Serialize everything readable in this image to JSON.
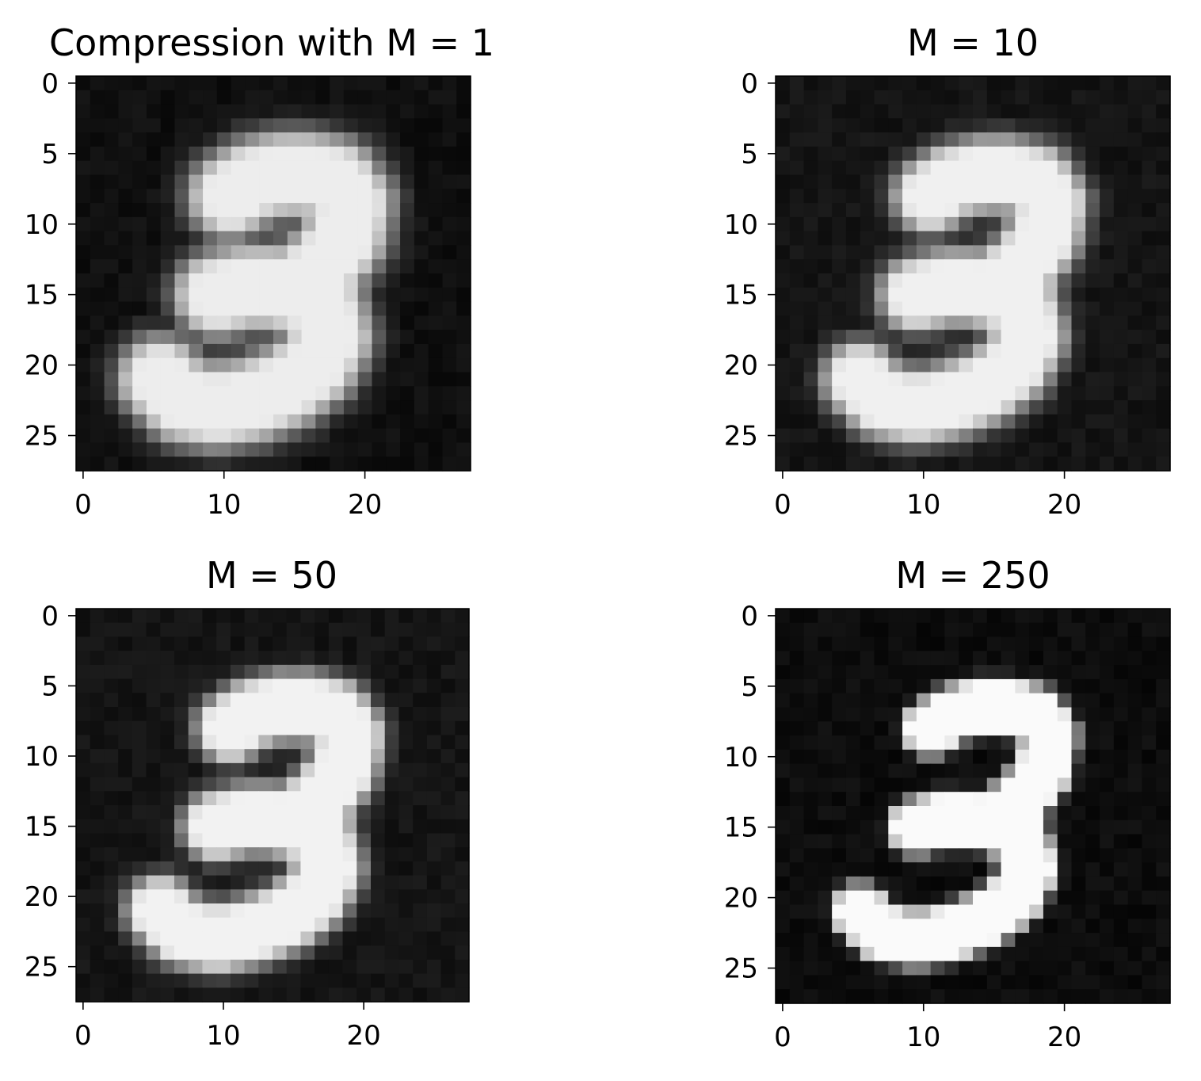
{
  "chart_data": [
    {
      "type": "heatmap",
      "title": "Compression with M = 1",
      "colormap": "gray",
      "grid": false,
      "image_size": [
        28,
        28
      ],
      "xlim": [
        -0.5,
        27.5
      ],
      "ylim": [
        27.5,
        -0.5
      ],
      "xticks": [
        "0",
        "10",
        "20"
      ],
      "yticks": [
        "0",
        "5",
        "10",
        "15",
        "20",
        "25"
      ],
      "background_level": 0.06,
      "peak_level": 0.93,
      "blur": 1.25,
      "stroke_width": 1.6
    },
    {
      "type": "heatmap",
      "title": "M = 10",
      "colormap": "gray",
      "grid": false,
      "image_size": [
        28,
        28
      ],
      "xlim": [
        -0.5,
        27.5
      ],
      "ylim": [
        27.5,
        -0.5
      ],
      "xticks": [
        "0",
        "10",
        "20"
      ],
      "yticks": [
        "0",
        "5",
        "10",
        "15",
        "20",
        "25"
      ],
      "background_level": 0.08,
      "peak_level": 0.94,
      "blur": 1.0,
      "stroke_width": 1.5
    },
    {
      "type": "heatmap",
      "title": "M = 50",
      "colormap": "gray",
      "grid": false,
      "image_size": [
        28,
        28
      ],
      "xlim": [
        -0.5,
        27.5
      ],
      "ylim": [
        27.5,
        -0.5
      ],
      "xticks": [
        "0",
        "10",
        "20"
      ],
      "yticks": [
        "0",
        "5",
        "10",
        "15",
        "20",
        "25"
      ],
      "background_level": 0.08,
      "peak_level": 0.95,
      "blur": 0.85,
      "stroke_width": 1.5
    },
    {
      "type": "heatmap",
      "title": "M = 250",
      "colormap": "gray",
      "grid": false,
      "image_size": [
        28,
        28
      ],
      "xlim": [
        -0.5,
        27.5
      ],
      "ylim": [
        27.5,
        -0.5
      ],
      "xticks": [
        "0",
        "10",
        "20"
      ],
      "yticks": [
        "0",
        "5",
        "10",
        "15",
        "20",
        "25"
      ],
      "background_level": 0.05,
      "peak_level": 0.98,
      "blur": 0.45,
      "stroke_width": 1.5
    }
  ]
}
